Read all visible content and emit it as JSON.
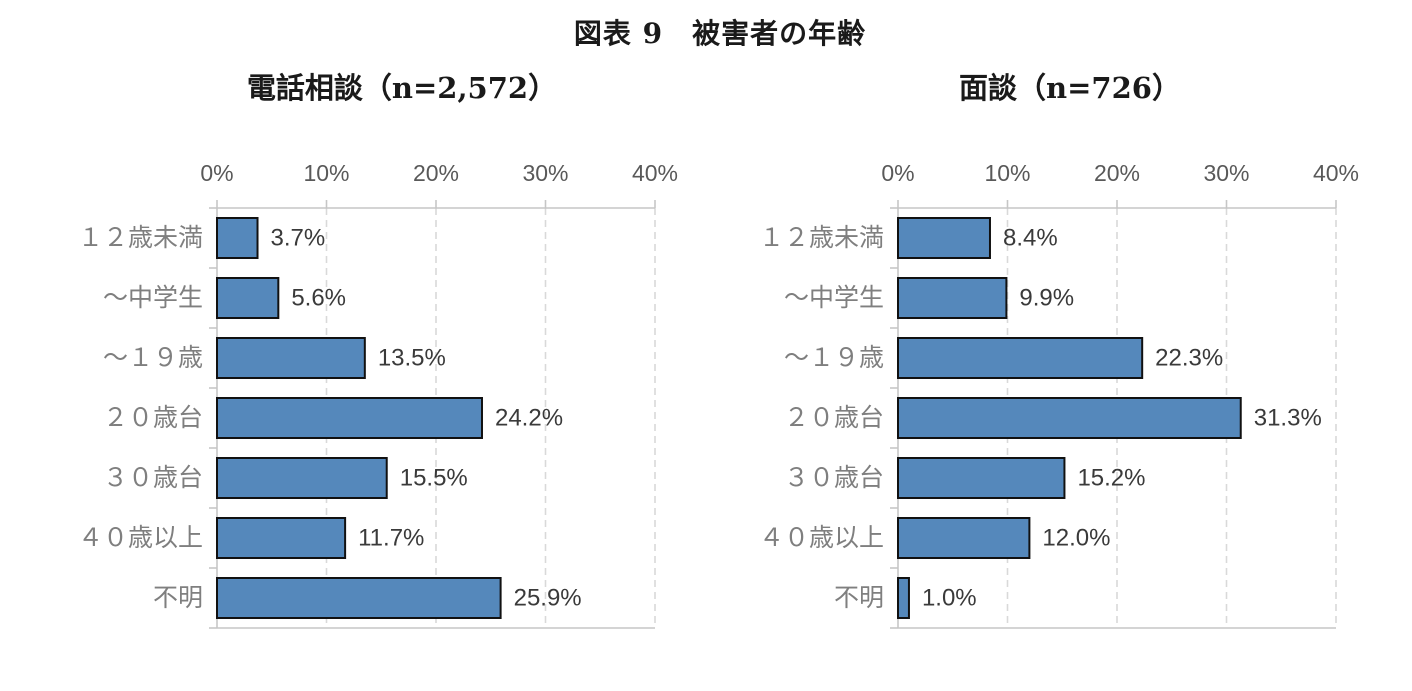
{
  "page": {
    "title": "図表 9　被害者の年齢"
  },
  "colors": {
    "bar_fill": "#5588BB",
    "bar_border": "#111111",
    "gridline": "#D9D9D9",
    "axis": "#C6C6C6",
    "tick_label": "#595959",
    "category_label": "#7F7F7F",
    "value_label": "#3A3A3A"
  },
  "chart_data": [
    {
      "type": "bar",
      "orientation": "horizontal",
      "title": "電話相談（n=2,572）",
      "categories": [
        "１２歳未満",
        "～中学生",
        "～１９歳",
        "２０歳台",
        "３０歳台",
        "４０歳以上",
        "不明"
      ],
      "values": [
        3.7,
        5.6,
        13.5,
        24.2,
        15.5,
        11.7,
        25.9
      ],
      "value_labels": [
        "3.7%",
        "5.6%",
        "13.5%",
        "24.2%",
        "15.5%",
        "11.7%",
        "25.9%"
      ],
      "x_ticks": [
        "0%",
        "10%",
        "20%",
        "30%",
        "40%"
      ],
      "xlim": [
        0,
        40
      ],
      "grid": "vertical-dashed",
      "legend": "none"
    },
    {
      "type": "bar",
      "orientation": "horizontal",
      "title": "面談（n=726）",
      "categories": [
        "１２歳未満",
        "～中学生",
        "～１９歳",
        "２０歳台",
        "３０歳台",
        "４０歳以上",
        "不明"
      ],
      "values": [
        8.4,
        9.9,
        22.3,
        31.3,
        15.2,
        12.0,
        1.0
      ],
      "value_labels": [
        "8.4%",
        "9.9%",
        "22.3%",
        "31.3%",
        "15.2%",
        "12.0%",
        "1.0%"
      ],
      "x_ticks": [
        "0%",
        "10%",
        "20%",
        "30%",
        "40%"
      ],
      "xlim": [
        0,
        40
      ],
      "grid": "vertical-dashed",
      "legend": "none"
    }
  ]
}
